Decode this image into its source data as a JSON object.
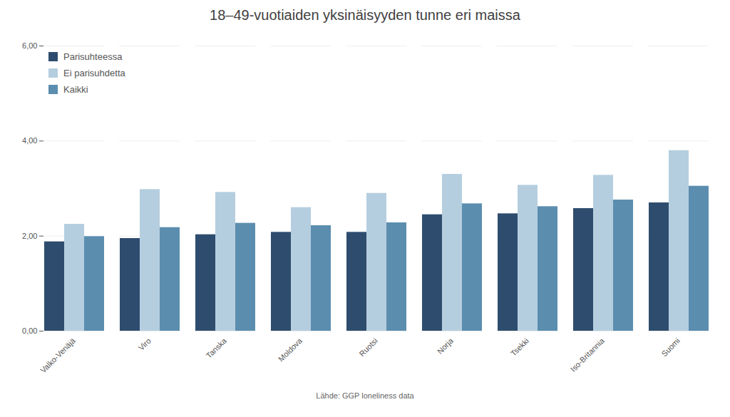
{
  "chart_data": {
    "type": "bar",
    "title": "18–49-vuotiaiden yksinäisyyden tunne eri maissa",
    "footnote": "Lähde: GGP loneliness data",
    "categories": [
      "Valko-Venäjä",
      "Viro",
      "Tanska",
      "Moldova",
      "Ruotsi",
      "Norja",
      "Tsekki",
      "Iso-Britannia",
      "Suomi"
    ],
    "series": [
      {
        "name": "Parisuhteessa",
        "color": "#2e4d6e",
        "values": [
          1.88,
          1.95,
          2.03,
          2.08,
          2.08,
          2.45,
          2.47,
          2.58,
          2.7
        ]
      },
      {
        "name": "Ei parisuhdetta",
        "color": "#b5cedf",
        "values": [
          2.25,
          2.98,
          2.92,
          2.6,
          2.9,
          3.3,
          3.07,
          3.28,
          3.8
        ]
      },
      {
        "name": "Kaikki",
        "color": "#5b8daf",
        "values": [
          1.99,
          2.18,
          2.27,
          2.22,
          2.28,
          2.68,
          2.62,
          2.76,
          3.05
        ]
      }
    ],
    "ylim": [
      0,
      6.0
    ],
    "yticks": [
      {
        "value": 0.0,
        "label": "0,00"
      },
      {
        "value": 2.0,
        "label": "2,00"
      },
      {
        "value": 4.0,
        "label": "4,00"
      },
      {
        "value": 6.0,
        "label": "6,00"
      }
    ],
    "grid": true,
    "legend": "upper left"
  }
}
